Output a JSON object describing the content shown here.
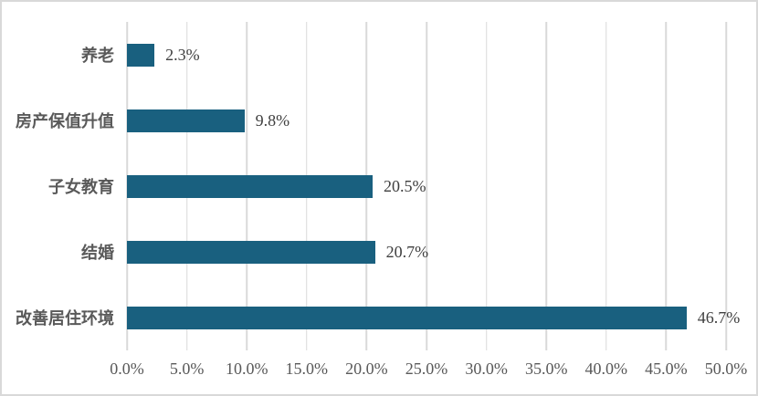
{
  "chart_data": {
    "type": "bar",
    "orientation": "horizontal",
    "title": "",
    "xlabel": "",
    "ylabel": "",
    "categories": [
      "养老",
      "房产保值升值",
      "子女教育",
      "结婚",
      "改善居住环境"
    ],
    "values": [
      2.3,
      9.8,
      20.5,
      20.7,
      46.7
    ],
    "value_labels": [
      "2.3%",
      "9.8%",
      "20.5%",
      "20.7%",
      "46.7%"
    ],
    "tick_labels": [
      "0.0%",
      "5.0%",
      "10.0%",
      "15.0%",
      "20.0%",
      "25.0%",
      "30.0%",
      "35.0%",
      "40.0%",
      "45.0%",
      "50.0%"
    ],
    "xlim": [
      0,
      50
    ],
    "grid": true,
    "legend_position": "none",
    "bar_color": "#19607f",
    "gridline_color": "#d9d9d9",
    "axis_text_color": "#595959",
    "value_text_color": "#3f3f3f"
  }
}
